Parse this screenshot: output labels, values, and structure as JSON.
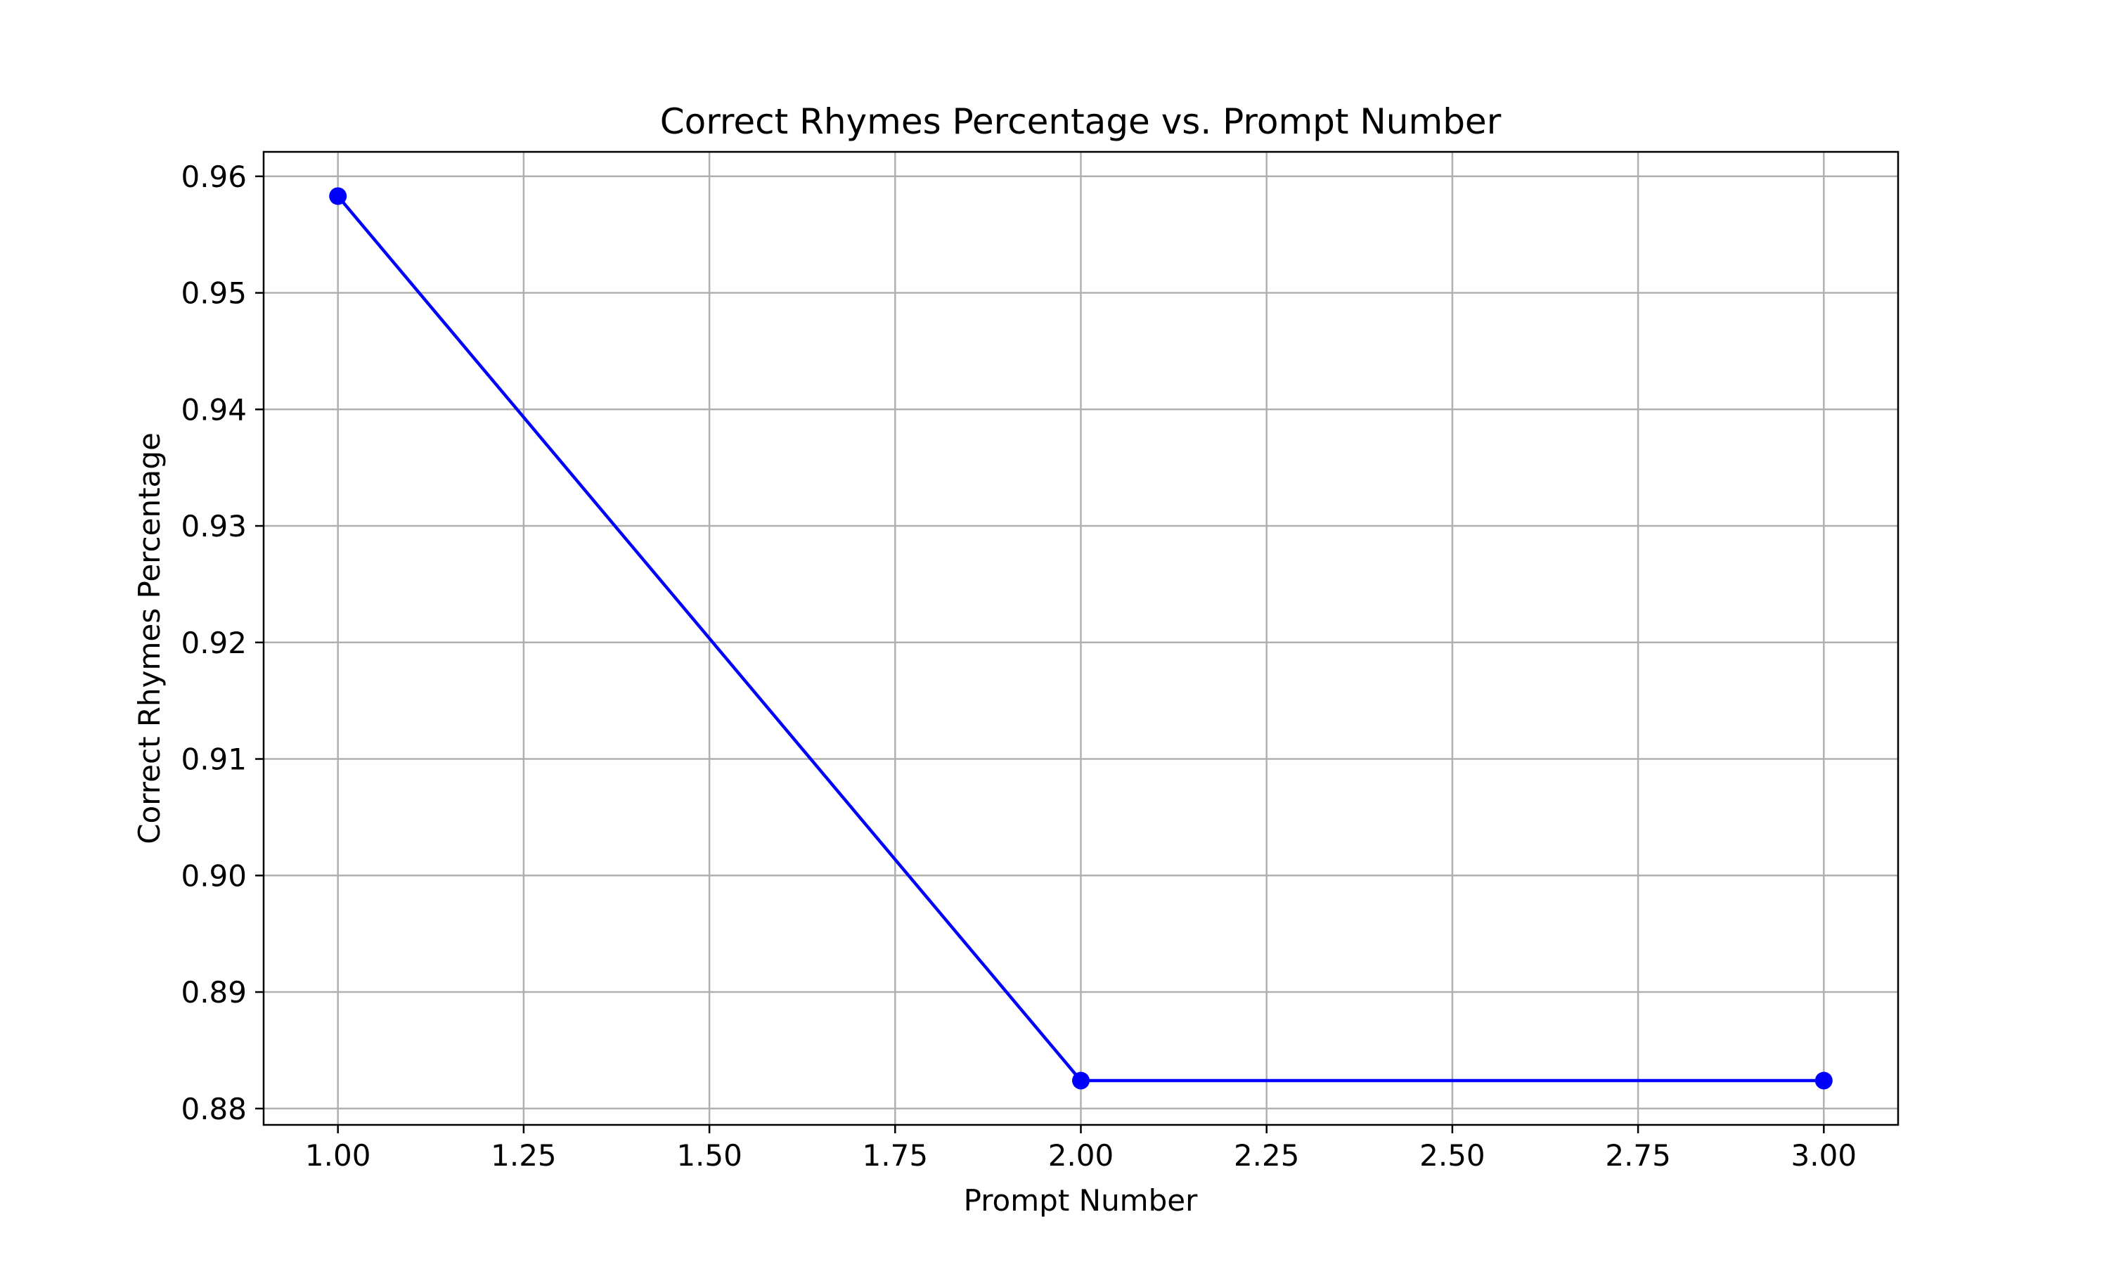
{
  "chart_data": {
    "type": "line",
    "title": "Correct Rhymes Percentage vs. Prompt Number",
    "xlabel": "Prompt Number",
    "ylabel": "Correct Rhymes Percentage",
    "xlim": [
      0.9,
      3.1
    ],
    "ylim": [
      0.8786,
      0.9621
    ],
    "grid": true,
    "x_ticks": [
      1.0,
      1.25,
      1.5,
      1.75,
      2.0,
      2.25,
      2.5,
      2.75,
      3.0
    ],
    "x_tick_labels": [
      "1.00",
      "1.25",
      "1.50",
      "1.75",
      "2.00",
      "2.25",
      "2.50",
      "2.75",
      "3.00"
    ],
    "y_ticks": [
      0.88,
      0.89,
      0.9,
      0.91,
      0.92,
      0.93,
      0.94,
      0.95,
      0.96
    ],
    "y_tick_labels": [
      "0.88",
      "0.89",
      "0.90",
      "0.91",
      "0.92",
      "0.93",
      "0.94",
      "0.95",
      "0.96"
    ],
    "series": [
      {
        "x": [
          1,
          2,
          3
        ],
        "y": [
          0.9583,
          0.8824,
          0.8824
        ],
        "color": "#0000ff",
        "marker": "circle"
      }
    ]
  }
}
